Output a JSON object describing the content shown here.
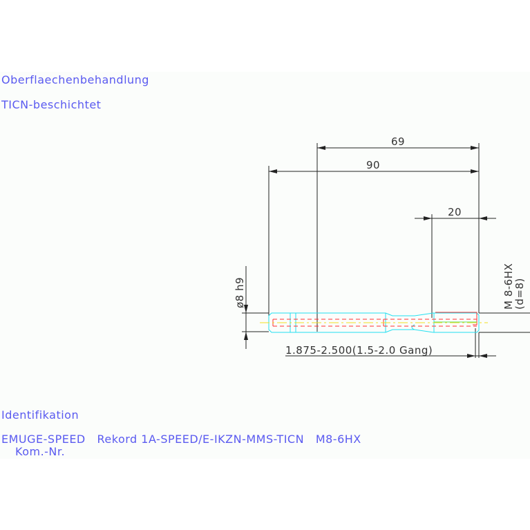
{
  "surface_treatment": {
    "heading": "Oberflaechenbehandlung",
    "value": "TICN-beschichtet"
  },
  "dimensions": {
    "length_69": "69",
    "length_90": "90",
    "length_20": "20",
    "shank_diameter": "ø8 h9",
    "thread_size": "M 8-6HX",
    "thread_diameter": "(d=8)",
    "chamfer": "1.875-2.500(1.5-2.0 Gang)"
  },
  "identification": {
    "heading": "Identifikation",
    "line1": "EMUGE-SPEED   Rekord 1A-SPEED/E-IKZN-MMS-TICN   M8-6HX",
    "line2": "Kom.-Nr."
  },
  "colors": {
    "text": "#5a5af0",
    "outline": "#22e0f0",
    "hidden": "#ff3030",
    "centerline": "#f0e020"
  }
}
